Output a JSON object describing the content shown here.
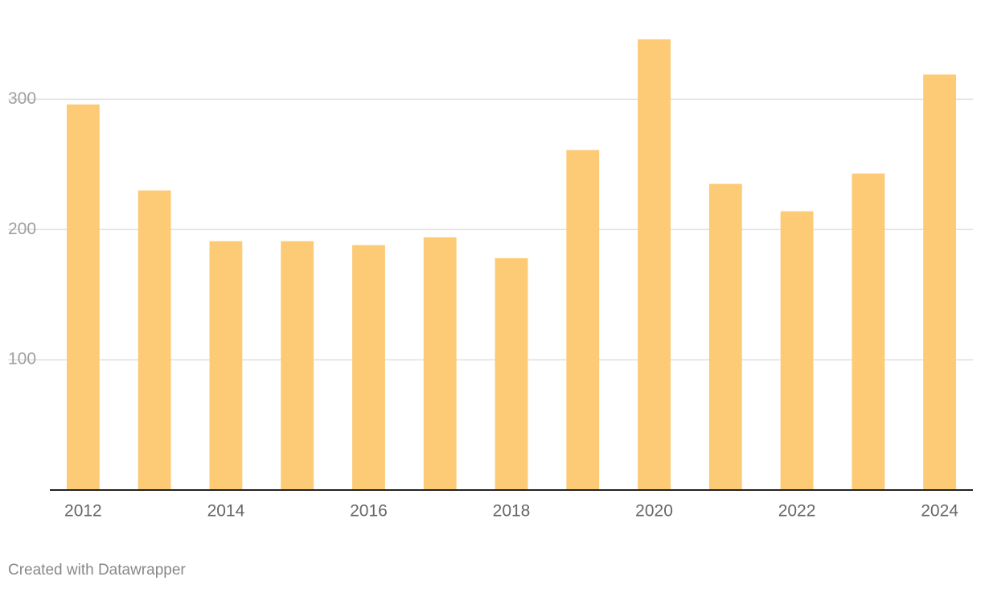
{
  "chart_data": {
    "type": "bar",
    "categories": [
      "2012",
      null,
      "2014",
      null,
      "2016",
      null,
      "2018",
      null,
      "2020",
      null,
      "2022",
      null,
      "2024"
    ],
    "values": [
      296,
      230,
      191,
      191,
      188,
      194,
      178,
      261,
      346,
      235,
      214,
      243,
      319
    ],
    "color": "#fdca76",
    "ylim": [
      0,
      370
    ],
    "yticks": [
      100,
      200,
      300
    ],
    "grid": true,
    "footer": "Created with Datawrapper"
  }
}
